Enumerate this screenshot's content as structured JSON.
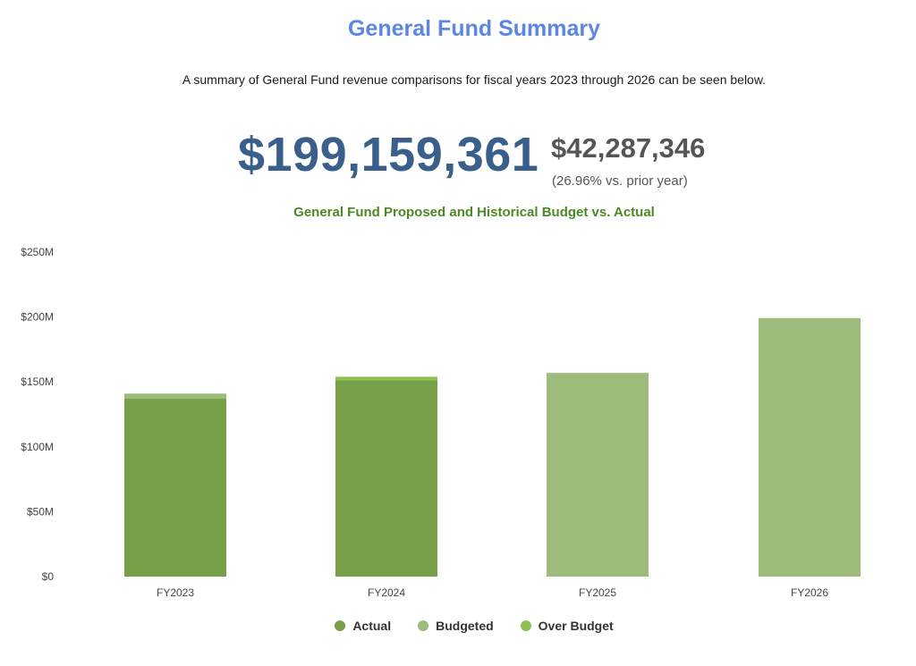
{
  "header": {
    "title": "General Fund Summary",
    "subtitle": "A summary of General Fund revenue comparisons for fiscal years 2023 through 2026 can be seen below."
  },
  "summary": {
    "total": "$199,159,361",
    "change_amount": "$42,287,346",
    "change_pct": "(26.96% vs. prior year)"
  },
  "colors": {
    "actual": "#76a047",
    "budgeted": "#9dbb7b",
    "over_budget": "#8cc152"
  },
  "chart_data": {
    "type": "bar",
    "title": "General Fund Proposed and Historical Budget vs. Actual",
    "categories": [
      "FY2023",
      "FY2024",
      "FY2025",
      "FY2026"
    ],
    "series": [
      {
        "name": "Actual",
        "values": [
          137,
          151,
          null,
          null
        ]
      },
      {
        "name": "Budgeted",
        "values": [
          141,
          null,
          156.9,
          199.2
        ]
      },
      {
        "name": "Over Budget",
        "values": [
          null,
          154,
          null,
          null
        ]
      }
    ],
    "ylim": [
      0,
      250
    ],
    "yticks": [
      0,
      50,
      100,
      150,
      200,
      250
    ],
    "ytick_labels": [
      "$0",
      "$50M",
      "$100M",
      "$150M",
      "$200M",
      "$250M"
    ],
    "xlabel": "",
    "ylabel": "",
    "legend": [
      "Actual",
      "Budgeted",
      "Over Budget"
    ],
    "legend_position": "bottom"
  }
}
